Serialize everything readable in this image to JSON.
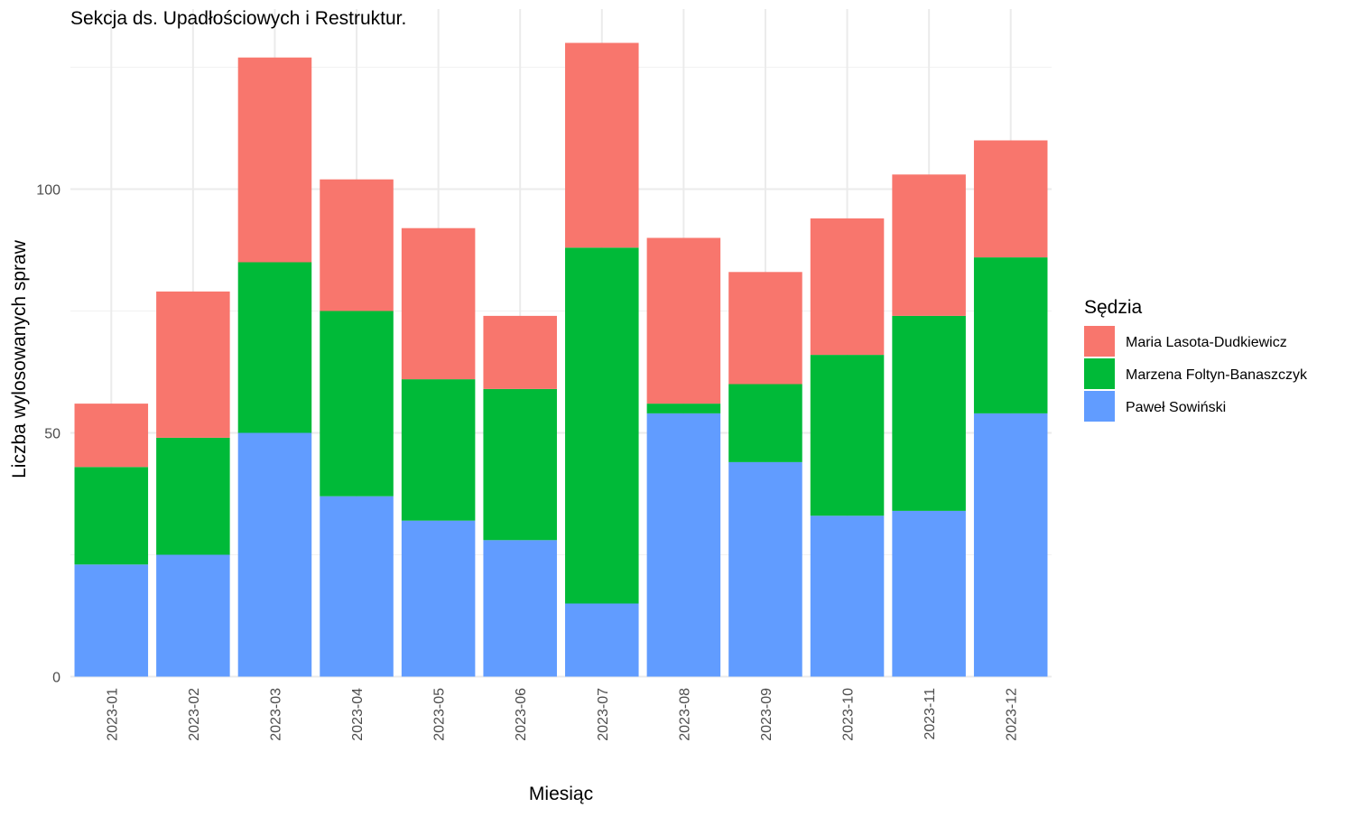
{
  "chart_data": {
    "type": "bar",
    "stacked": true,
    "title": "Sekcja ds. Upadłościowych i Restruktur.",
    "xlabel": "Miesiąc",
    "ylabel": "Liczba wylosowanych spraw",
    "ylim": [
      0,
      130
    ],
    "yticks": [
      0,
      50,
      100
    ],
    "grid": true,
    "legend_title": "Sędzia",
    "legend_position": "right",
    "categories": [
      "2023-01",
      "2023-02",
      "2023-03",
      "2023-04",
      "2023-05",
      "2023-06",
      "2023-07",
      "2023-08",
      "2023-09",
      "2023-10",
      "2023-11",
      "2023-12"
    ],
    "series": [
      {
        "name": "Paweł Sowiński",
        "color": "#619CFF",
        "values": [
          23,
          25,
          50,
          37,
          32,
          28,
          15,
          54,
          44,
          33,
          34,
          54
        ]
      },
      {
        "name": "Marzena Foltyn-Banaszczyk",
        "color": "#00BA38",
        "values": [
          20,
          24,
          35,
          38,
          29,
          31,
          73,
          2,
          16,
          33,
          40,
          32
        ]
      },
      {
        "name": "Maria Lasota-Dudkiewicz",
        "color": "#F8766D",
        "values": [
          13,
          30,
          42,
          27,
          31,
          15,
          42,
          34,
          23,
          28,
          29,
          24
        ]
      }
    ],
    "legend_order": [
      "Maria Lasota-Dudkiewicz",
      "Marzena Foltyn-Banaszczyk",
      "Paweł Sowiński"
    ]
  }
}
